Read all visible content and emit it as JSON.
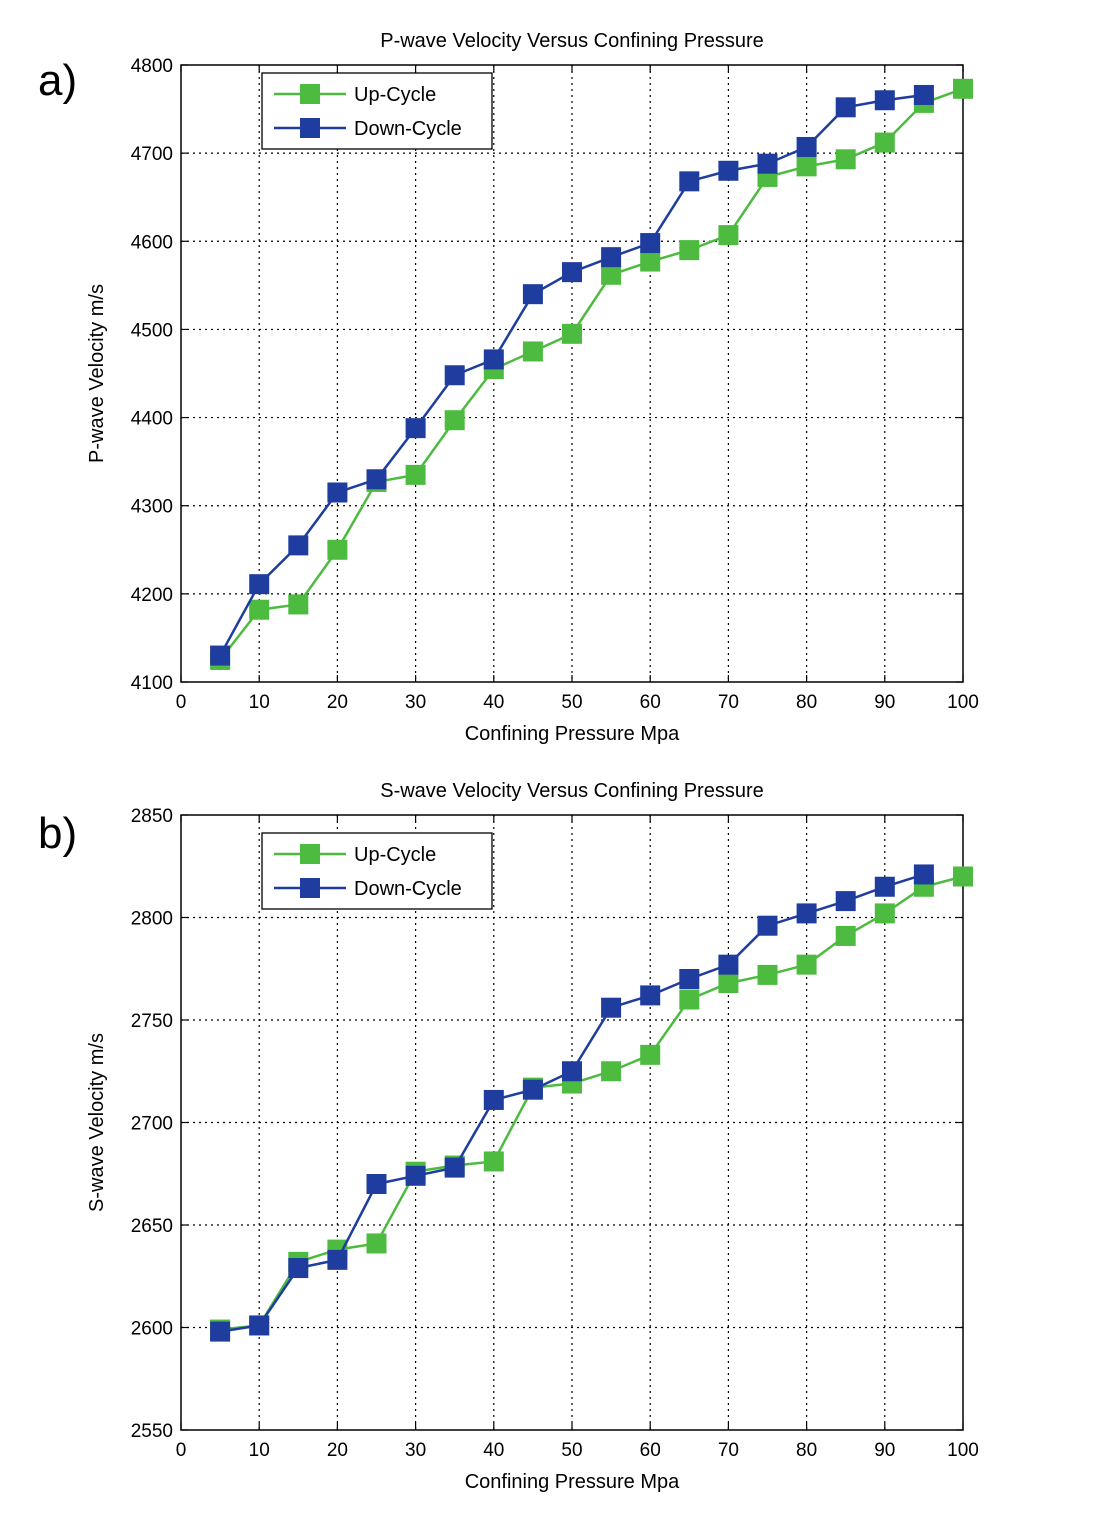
{
  "figure": {
    "panels": [
      {
        "panel_label": "a)",
        "chart_data": {
          "type": "line",
          "title": "P-wave Velocity Versus Confining Pressure",
          "xlabel": "Confining Pressure Mpa",
          "ylabel": "P-wave Velocity m/s",
          "xlim": [
            0,
            100
          ],
          "ylim": [
            4100,
            4800
          ],
          "xticks": [
            0,
            10,
            20,
            30,
            40,
            50,
            60,
            70,
            80,
            90,
            100
          ],
          "yticks": [
            4100,
            4200,
            4300,
            4400,
            4500,
            4600,
            4700,
            4800
          ],
          "grid": true,
          "legend_position": "top-left",
          "x": [
            5,
            10,
            15,
            20,
            25,
            30,
            35,
            40,
            45,
            50,
            55,
            60,
            65,
            70,
            75,
            80,
            85,
            90,
            95,
            100
          ],
          "series": [
            {
              "name": "Up-Cycle",
              "color": "#4dbb3f",
              "values": [
                4125,
                4182,
                4188,
                4250,
                4327,
                4335,
                4397,
                4455,
                4475,
                4495,
                4562,
                4577,
                4590,
                4607,
                4673,
                4685,
                4693,
                4712,
                4757,
                4773
              ]
            },
            {
              "name": "Down-Cycle",
              "color": "#1f3d9e",
              "values": [
                4130,
                4211,
                4255,
                4315,
                4330,
                4388,
                4448,
                4466,
                4540,
                4565,
                4582,
                4598,
                4668,
                4680,
                4688,
                4707,
                4752,
                4760,
                4766,
                null
              ]
            }
          ]
        }
      },
      {
        "panel_label": "b)",
        "chart_data": {
          "type": "line",
          "title": "S-wave Velocity Versus Confining Pressure",
          "xlabel": "Confining Pressure Mpa",
          "ylabel": "S-wave Velocity m/s",
          "xlim": [
            0,
            100
          ],
          "ylim": [
            2550,
            2850
          ],
          "xticks": [
            0,
            10,
            20,
            30,
            40,
            50,
            60,
            70,
            80,
            90,
            100
          ],
          "yticks": [
            2550,
            2600,
            2650,
            2700,
            2750,
            2800,
            2850
          ],
          "grid": true,
          "legend_position": "top-left",
          "x": [
            5,
            10,
            15,
            20,
            25,
            30,
            35,
            40,
            45,
            50,
            55,
            60,
            65,
            70,
            75,
            80,
            85,
            90,
            95,
            100
          ],
          "series": [
            {
              "name": "Up-Cycle",
              "color": "#4dbb3f",
              "values": [
                2599,
                2601,
                2632,
                2638,
                2641,
                2676,
                2679,
                2681,
                2717,
                2719,
                2725,
                2733,
                2760,
                2768,
                2772,
                2777,
                2791,
                2802,
                2815,
                2820
              ]
            },
            {
              "name": "Down-Cycle",
              "color": "#1f3d9e",
              "values": [
                2598,
                2601,
                2629,
                2633,
                2670,
                2674,
                2678,
                2711,
                2716,
                2725,
                2756,
                2762,
                2770,
                2777,
                2796,
                2802,
                2808,
                2815,
                2821,
                null
              ]
            }
          ]
        }
      }
    ]
  }
}
